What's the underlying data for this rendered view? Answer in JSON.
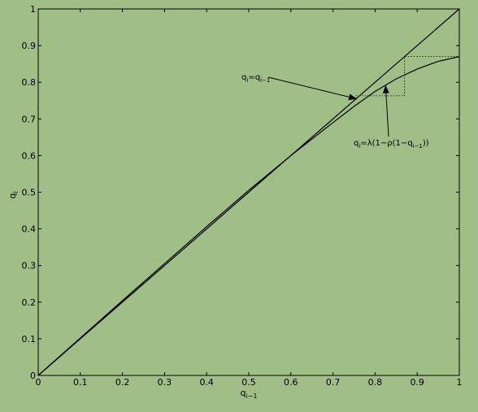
{
  "chart_data": {
    "type": "line",
    "xlabel": "q_{i−1}",
    "ylabel": "q_i",
    "xlim": [
      0,
      1
    ],
    "ylim": [
      0,
      1
    ],
    "grid": false,
    "x_ticks": [
      "0",
      "0.1",
      "0.2",
      "0.3",
      "0.4",
      "0.5",
      "0.6",
      "0.7",
      "0.8",
      "0.9",
      "1"
    ],
    "y_ticks": [
      "0",
      "0.1",
      "0.2",
      "0.3",
      "0.4",
      "0.5",
      "0.6",
      "0.7",
      "0.8",
      "0.9",
      "1"
    ],
    "series": [
      {
        "name": "q_i = q_{i−1}",
        "x": [
          0,
          1
        ],
        "y": [
          0,
          1
        ]
      },
      {
        "name": "q_i = λ(1−ρ(1−q_{i−1}))",
        "x": [
          0,
          0.1,
          0.2,
          0.3,
          0.4,
          0.5,
          0.6,
          0.65,
          0.7,
          0.75,
          0.8,
          0.85,
          0.9,
          0.95,
          1.0
        ],
        "y": [
          0,
          0.102,
          0.204,
          0.305,
          0.406,
          0.505,
          0.6,
          0.645,
          0.69,
          0.734,
          0.775,
          0.809,
          0.836,
          0.857,
          0.87
        ]
      }
    ],
    "cobweb": {
      "x": [
        0.755,
        0.755,
        0.87,
        0.87,
        1.0
      ],
      "y": [
        0.755,
        0.763,
        0.763,
        0.87,
        0.87
      ]
    },
    "annotations": [
      {
        "id": "identity",
        "label": "q_i=q_{i−1}",
        "target": [
          0.755,
          0.755
        ]
      },
      {
        "id": "map",
        "label": "q_i=λ(1−ρ(1−q_{i−1}))",
        "target": [
          0.825,
          0.79
        ]
      }
    ]
  }
}
